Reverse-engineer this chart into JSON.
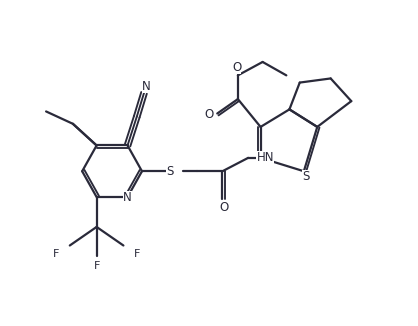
{
  "bg_color": "#ffffff",
  "line_color": "#2a2a3a",
  "line_width": 1.6,
  "fig_width": 4.18,
  "fig_height": 3.26,
  "dpi": 100,
  "xlim": [
    0.5,
    4.5
  ],
  "ylim": [
    0.5,
    3.3
  ]
}
